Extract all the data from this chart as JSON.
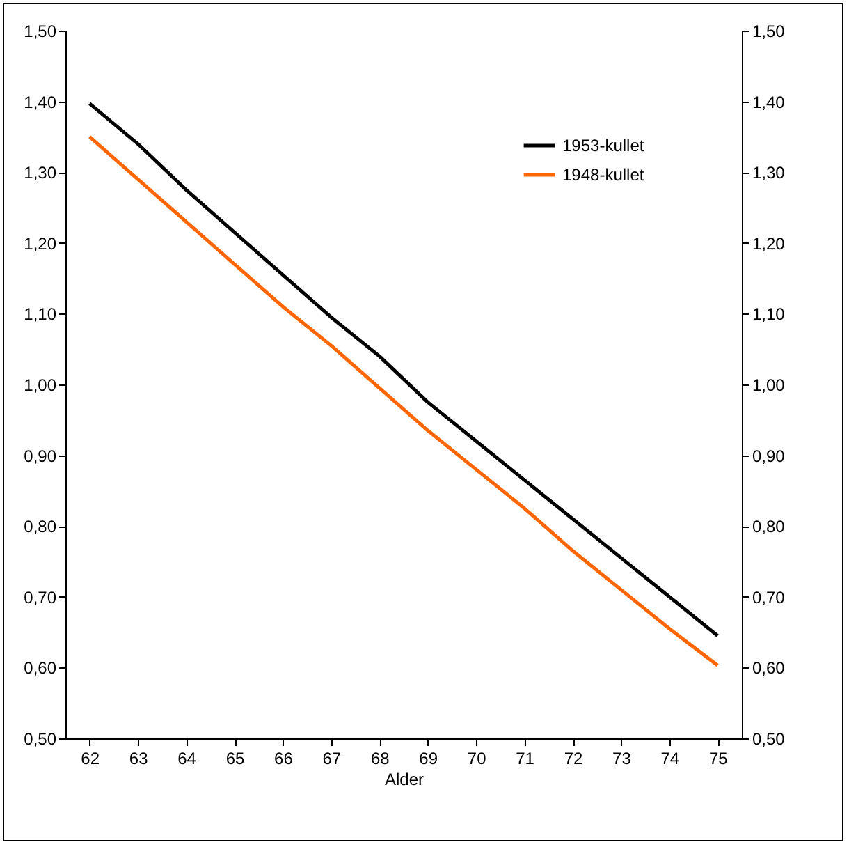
{
  "chart_data": {
    "type": "line",
    "xlabel": "Alder",
    "categories": [
      "62",
      "63",
      "64",
      "65",
      "66",
      "67",
      "68",
      "69",
      "70",
      "71",
      "72",
      "73",
      "74",
      "75"
    ],
    "series": [
      {
        "name": "1953-kullet",
        "color": "#000000",
        "values": [
          1.397,
          1.34,
          1.275,
          1.215,
          1.155,
          1.095,
          1.04,
          0.975,
          0.92,
          0.865,
          0.81,
          0.755,
          0.7,
          0.645
        ]
      },
      {
        "name": "1948-kullet",
        "color": "#ff6600",
        "values": [
          1.35,
          1.29,
          1.23,
          1.17,
          1.11,
          1.055,
          0.995,
          0.935,
          0.88,
          0.825,
          0.765,
          0.71,
          0.655,
          0.603
        ]
      }
    ],
    "ylim": [
      0.5,
      1.5
    ],
    "yticks": [
      {
        "value": 0.5,
        "label": "0,50"
      },
      {
        "value": 0.6,
        "label": "0,60"
      },
      {
        "value": 0.7,
        "label": "0,70"
      },
      {
        "value": 0.8,
        "label": "0,80"
      },
      {
        "value": 0.9,
        "label": "0,90"
      },
      {
        "value": 1.0,
        "label": "1,00"
      },
      {
        "value": 1.1,
        "label": "1,10"
      },
      {
        "value": 1.2,
        "label": "1,20"
      },
      {
        "value": 1.3,
        "label": "1,30"
      },
      {
        "value": 1.4,
        "label": "1,40"
      },
      {
        "value": 1.5,
        "label": "1,50"
      }
    ],
    "y2lim": [
      0.5,
      1.5
    ],
    "y2ticks": [
      {
        "value": 0.5,
        "label": "0,50"
      },
      {
        "value": 0.6,
        "label": "0,60"
      },
      {
        "value": 0.7,
        "label": "0,70"
      },
      {
        "value": 0.8,
        "label": "0,80"
      },
      {
        "value": 0.9,
        "label": "0,90"
      },
      {
        "value": 1.0,
        "label": "1,00"
      },
      {
        "value": 1.1,
        "label": "1,10"
      },
      {
        "value": 1.2,
        "label": "1,20"
      },
      {
        "value": 1.3,
        "label": "1,30"
      },
      {
        "value": 1.4,
        "label": "1,40"
      },
      {
        "value": 1.5,
        "label": "1,50"
      }
    ],
    "grid": false,
    "legend": "top right",
    "marker": "none",
    "line_style": "solid"
  }
}
